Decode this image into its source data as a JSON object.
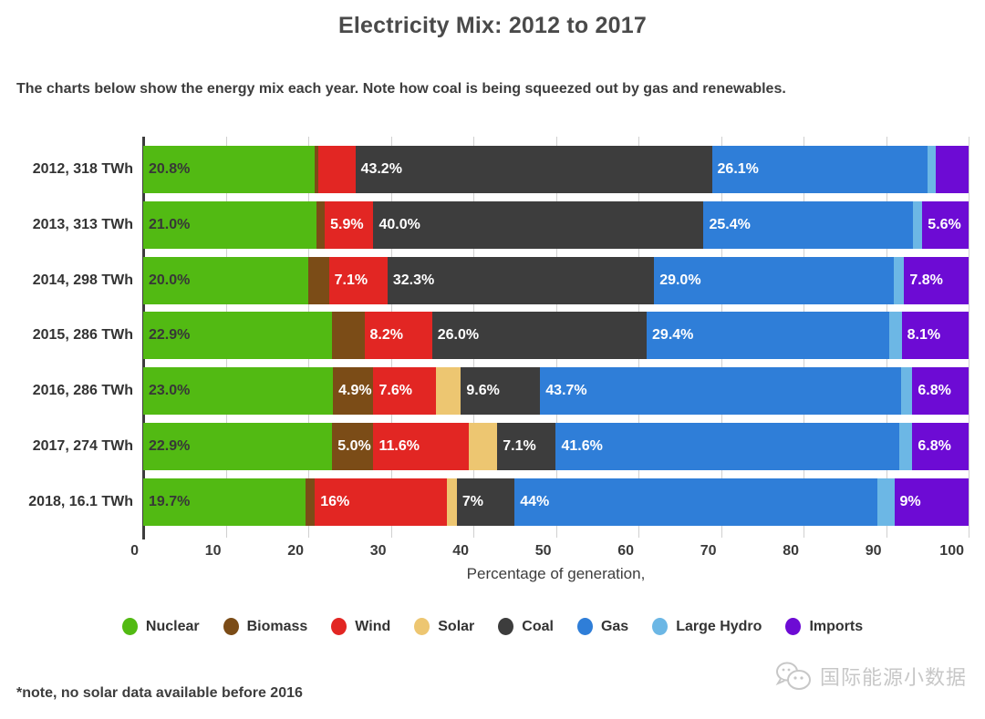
{
  "header": {
    "title": "Electricity Mix: 2012 to 2017",
    "subtitle": "The charts below show the energy mix each year. Note how coal is being squeezed out by gas and renewables."
  },
  "chart_data": {
    "type": "bar",
    "stacked": true,
    "orientation": "horizontal",
    "title": "Electricity Mix: 2012 to 2017",
    "xlabel": "Percentage of generation,",
    "ylabel": "",
    "xlim": [
      0,
      100
    ],
    "xticks": [
      0,
      10,
      20,
      30,
      40,
      50,
      60,
      70,
      80,
      90,
      100
    ],
    "grid": true,
    "legend_position": "bottom",
    "legend": [
      {
        "name": "Nuclear",
        "color": "#52ba13",
        "label_color": "#373737"
      },
      {
        "name": "Biomass",
        "color": "#7b4c17",
        "label_color": "#ffffff"
      },
      {
        "name": "Wind",
        "color": "#e22623",
        "label_color": "#ffffff"
      },
      {
        "name": "Solar",
        "color": "#edc671",
        "label_color": "#373737"
      },
      {
        "name": "Coal",
        "color": "#3d3d3d",
        "label_color": "#ffffff"
      },
      {
        "name": "Gas",
        "color": "#2f7ed8",
        "label_color": "#ffffff"
      },
      {
        "name": "Large Hydro",
        "color": "#6cb7e5",
        "label_color": "#ffffff"
      },
      {
        "name": "Imports",
        "color": "#6d0bd4",
        "label_color": "#ffffff"
      }
    ],
    "rows": [
      {
        "label": "2012, 318 TWh",
        "segments": [
          {
            "series": "Nuclear",
            "value": 20.8,
            "label": "20.8%"
          },
          {
            "series": "Biomass",
            "value": 0.4,
            "label": ""
          },
          {
            "series": "Wind",
            "value": 4.5,
            "label": ""
          },
          {
            "series": "Coal",
            "value": 43.2,
            "label": "43.2%"
          },
          {
            "series": "Gas",
            "value": 26.1,
            "label": "26.1%"
          },
          {
            "series": "Large Hydro",
            "value": 1.0,
            "label": ""
          },
          {
            "series": "Imports",
            "value": 4.0,
            "label": ""
          }
        ]
      },
      {
        "label": "2013, 313 TWh",
        "segments": [
          {
            "series": "Nuclear",
            "value": 21.0,
            "label": "21.0%"
          },
          {
            "series": "Biomass",
            "value": 1.0,
            "label": ""
          },
          {
            "series": "Wind",
            "value": 5.9,
            "label": "5.9%"
          },
          {
            "series": "Coal",
            "value": 40.0,
            "label": "40.0%"
          },
          {
            "series": "Gas",
            "value": 25.4,
            "label": "25.4%"
          },
          {
            "series": "Large Hydro",
            "value": 1.1,
            "label": ""
          },
          {
            "series": "Imports",
            "value": 5.6,
            "label": "5.6%"
          }
        ]
      },
      {
        "label": "2014, 298 TWh",
        "segments": [
          {
            "series": "Nuclear",
            "value": 20.0,
            "label": "20.0%"
          },
          {
            "series": "Biomass",
            "value": 2.5,
            "label": ""
          },
          {
            "series": "Wind",
            "value": 7.1,
            "label": "7.1%"
          },
          {
            "series": "Coal",
            "value": 32.3,
            "label": "32.3%"
          },
          {
            "series": "Gas",
            "value": 29.0,
            "label": "29.0%"
          },
          {
            "series": "Large Hydro",
            "value": 1.3,
            "label": ""
          },
          {
            "series": "Imports",
            "value": 7.8,
            "label": "7.8%"
          }
        ]
      },
      {
        "label": "2015, 286 TWh",
        "segments": [
          {
            "series": "Nuclear",
            "value": 22.9,
            "label": "22.9%"
          },
          {
            "series": "Biomass",
            "value": 3.9,
            "label": ""
          },
          {
            "series": "Wind",
            "value": 8.2,
            "label": "8.2%"
          },
          {
            "series": "Coal",
            "value": 26.0,
            "label": "26.0%"
          },
          {
            "series": "Gas",
            "value": 29.4,
            "label": "29.4%"
          },
          {
            "series": "Large Hydro",
            "value": 1.5,
            "label": ""
          },
          {
            "series": "Imports",
            "value": 8.1,
            "label": "8.1%"
          }
        ]
      },
      {
        "label": "2016, 286 TWh",
        "segments": [
          {
            "series": "Nuclear",
            "value": 23.0,
            "label": "23.0%"
          },
          {
            "series": "Biomass",
            "value": 4.9,
            "label": "4.9%"
          },
          {
            "series": "Wind",
            "value": 7.6,
            "label": "7.6%"
          },
          {
            "series": "Solar",
            "value": 3.0,
            "label": ""
          },
          {
            "series": "Coal",
            "value": 9.6,
            "label": "9.6%"
          },
          {
            "series": "Gas",
            "value": 43.7,
            "label": "43.7%"
          },
          {
            "series": "Large Hydro",
            "value": 1.4,
            "label": ""
          },
          {
            "series": "Imports",
            "value": 6.8,
            "label": "6.8%"
          }
        ]
      },
      {
        "label": "2017, 274 TWh",
        "segments": [
          {
            "series": "Nuclear",
            "value": 22.9,
            "label": "22.9%"
          },
          {
            "series": "Biomass",
            "value": 5.0,
            "label": "5.0%"
          },
          {
            "series": "Wind",
            "value": 11.6,
            "label": "11.6%"
          },
          {
            "series": "Solar",
            "value": 3.4,
            "label": ""
          },
          {
            "series": "Coal",
            "value": 7.1,
            "label": "7.1%"
          },
          {
            "series": "Gas",
            "value": 41.6,
            "label": "41.6%"
          },
          {
            "series": "Large Hydro",
            "value": 1.6,
            "label": ""
          },
          {
            "series": "Imports",
            "value": 6.8,
            "label": "6.8%"
          }
        ]
      },
      {
        "label": "2018, 16.1 TWh",
        "segments": [
          {
            "series": "Nuclear",
            "value": 19.7,
            "label": "19.7%"
          },
          {
            "series": "Biomass",
            "value": 1.1,
            "label": ""
          },
          {
            "series": "Wind",
            "value": 16.0,
            "label": "16%"
          },
          {
            "series": "Solar",
            "value": 1.2,
            "label": ""
          },
          {
            "series": "Coal",
            "value": 7.0,
            "label": "7%"
          },
          {
            "series": "Gas",
            "value": 44.0,
            "label": "44%"
          },
          {
            "series": "Large Hydro",
            "value": 2.0,
            "label": ""
          },
          {
            "series": "Imports",
            "value": 9.0,
            "label": "9%"
          }
        ]
      }
    ]
  },
  "footer": {
    "note": "*note, no solar data available before 2016",
    "watermark": "国际能源小数据"
  }
}
